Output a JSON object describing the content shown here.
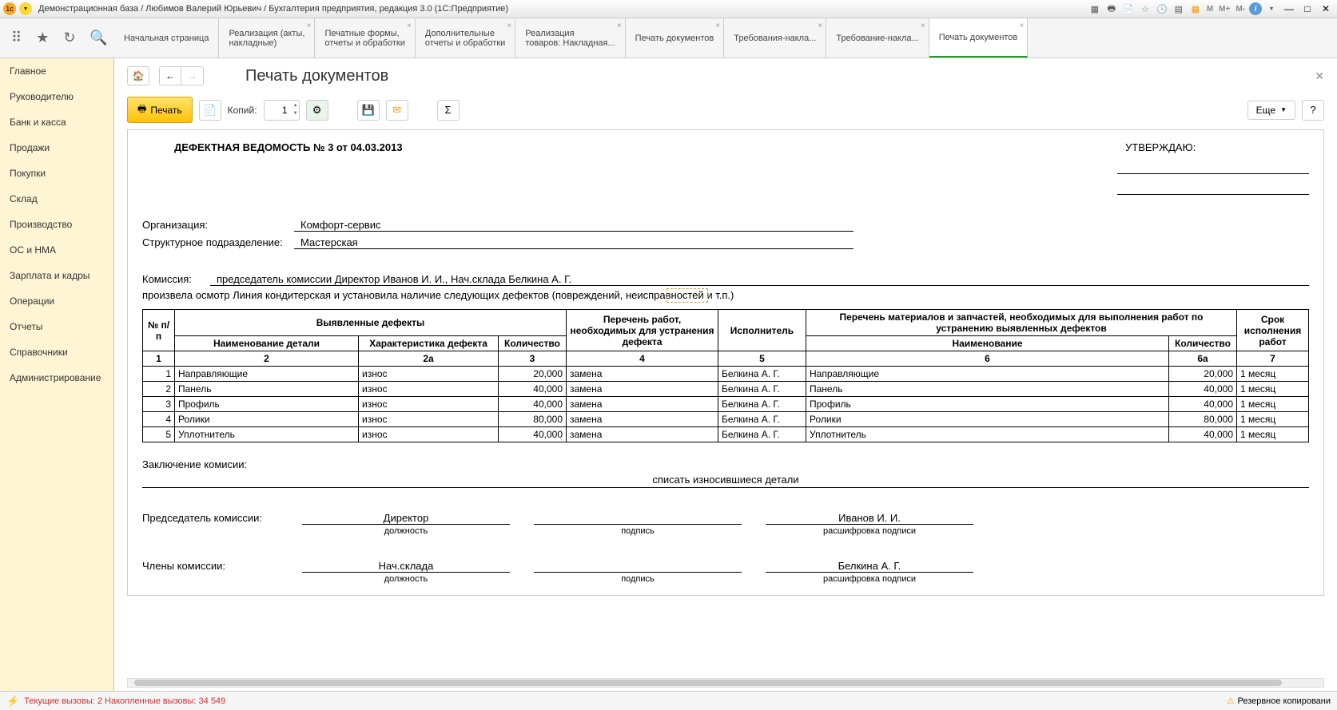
{
  "titlebar": {
    "text": "Демонстрационная база / Любимов Валерий Юрьевич / Бухгалтерия предприятия, редакция 3.0  (1С:Предприятие)",
    "m_labels": [
      "M",
      "M+",
      "M-"
    ]
  },
  "tabs": [
    {
      "line1": "Начальная страница",
      "line2": "",
      "closable": false
    },
    {
      "line1": "Реализация (акты,",
      "line2": "накладные)",
      "closable": true
    },
    {
      "line1": "Печатные формы,",
      "line2": "отчеты и обработки",
      "closable": true
    },
    {
      "line1": "Дополнительные",
      "line2": "отчеты и обработки",
      "closable": true
    },
    {
      "line1": "Реализация",
      "line2": "товаров: Накладная...",
      "closable": true
    },
    {
      "line1": "Печать документов",
      "line2": "",
      "closable": true
    },
    {
      "line1": "Требования-накла...",
      "line2": "",
      "closable": true
    },
    {
      "line1": "Требование-накла...",
      "line2": "",
      "closable": true
    },
    {
      "line1": "Печать документов",
      "line2": "",
      "closable": true,
      "active": true
    }
  ],
  "sidebar": [
    "Главное",
    "Руководителю",
    "Банк и касса",
    "Продажи",
    "Покупки",
    "Склад",
    "Производство",
    "ОС и НМА",
    "Зарплата и кадры",
    "Операции",
    "Отчеты",
    "Справочники",
    "Администрирование"
  ],
  "page": {
    "title": "Печать документов",
    "print_btn": "Печать",
    "copies_label": "Копий:",
    "copies_value": "1",
    "more_btn": "Еще",
    "help_btn": "?"
  },
  "doc": {
    "title": "ДЕФЕКТНАЯ ВЕДОМОСТЬ № 3 от 04.03.2013",
    "approve": "УТВЕРЖДАЮ:",
    "org_label": "Организация:",
    "org_value": "Комфорт-сервис",
    "dept_label": "Структурное подразделение:",
    "dept_value": "Мастерская",
    "commission_label": "Комиссия:",
    "commission_value": "председатель комиссии Директор Иванов И. И., Нач.склада Белкина А. Г.",
    "inspection": "произвела осмотр Линия кондитерская и установила наличие следующих дефектов (повреждений, неисправностей и т.п.)",
    "table": {
      "headers": {
        "npp": "№ п/п",
        "defects": "Выявленные дефекты",
        "detail_name": "Наименование детали",
        "characteristic": "Характеристика дефекта",
        "quantity": "Количество",
        "works": "Перечень работ, необходимых для устранения дефекта",
        "executor": "Исполнитель",
        "materials": "Перечень материалов и запчастей, необходимых для выполнения работ по устранению выявленных дефектов",
        "mat_name": "Наименование",
        "mat_qty": "Количество",
        "deadline": "Срок исполнения работ"
      },
      "col_nums": [
        "1",
        "2",
        "2а",
        "3",
        "4",
        "5",
        "6",
        "6а",
        "7"
      ],
      "rows": [
        {
          "n": "1",
          "name": "Направляющие",
          "char": "износ",
          "qty": "20,000",
          "work": "замена",
          "exec": "Белкина А. Г.",
          "mat": "Направляющие",
          "mqty": "20,000",
          "term": "1 месяц"
        },
        {
          "n": "2",
          "name": "Панель",
          "char": "износ",
          "qty": "40,000",
          "work": "замена",
          "exec": "Белкина А. Г.",
          "mat": "Панель",
          "mqty": "40,000",
          "term": "1 месяц"
        },
        {
          "n": "3",
          "name": "Профиль",
          "char": "износ",
          "qty": "40,000",
          "work": "замена",
          "exec": "Белкина А. Г.",
          "mat": "Профиль",
          "mqty": "40,000",
          "term": "1 месяц"
        },
        {
          "n": "4",
          "name": "Ролики",
          "char": "износ",
          "qty": "80,000",
          "work": "замена",
          "exec": "Белкина А. Г.",
          "mat": "Ролики",
          "mqty": "80,000",
          "term": "1 месяц"
        },
        {
          "n": "5",
          "name": "Уплотнитель",
          "char": "износ",
          "qty": "40,000",
          "work": "замена",
          "exec": "Белкина А. Г.",
          "mat": "Уплотнитель",
          "mqty": "40,000",
          "term": "1 месяц"
        }
      ]
    },
    "conclusion_label": "Заключение комисии:",
    "conclusion_value": "списать износившиеся детали",
    "chairman_label": "Председатель комиссии:",
    "members_label": "Члены комиссии:",
    "chairman_pos": "Директор",
    "chairman_name": "Иванов И. И.",
    "member_pos": "Нач.склада",
    "member_name": "Белкина А. Г.",
    "sig_pos": "должность",
    "sig_sign": "подпись",
    "sig_decode": "расшифровка подписи"
  },
  "statusbar": {
    "text": "Текущие вызовы: 2  Накопленные вызовы: 34 549",
    "backup": "Резервное копировани"
  }
}
